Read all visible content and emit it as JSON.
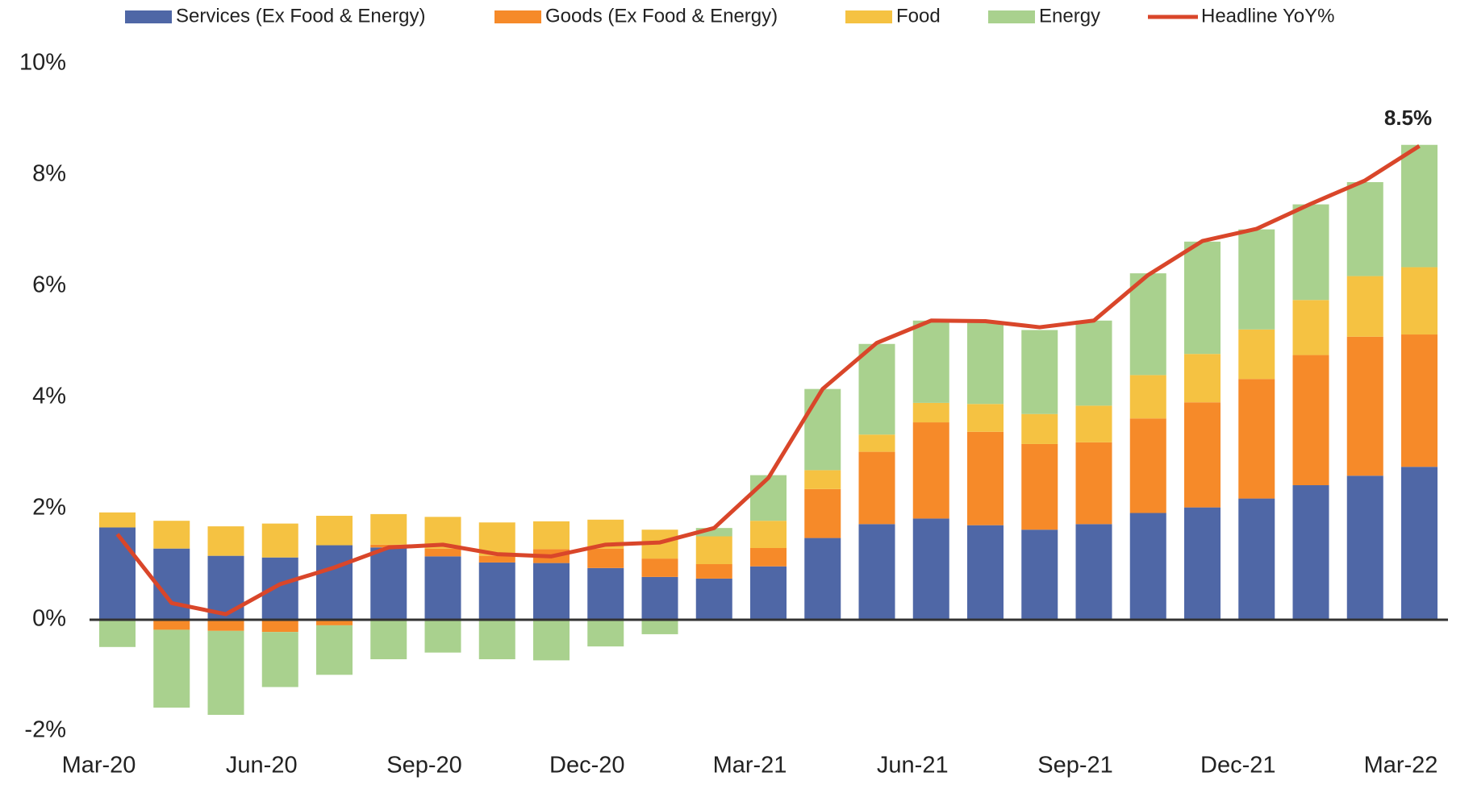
{
  "chart_data": {
    "type": "stacked_bar_line",
    "categories": [
      "Mar-20",
      null,
      null,
      "Jun-20",
      null,
      null,
      "Sep-20",
      null,
      null,
      "Dec-20",
      null,
      null,
      "Mar-21",
      null,
      null,
      "Jun-21",
      null,
      null,
      "Sep-21",
      null,
      null,
      "Dec-21",
      null,
      null,
      "Mar-22"
    ],
    "series": [
      {
        "name": "Services (Ex Food & Energy)",
        "color": "#4f67a6",
        "kind": "bar",
        "values": [
          1.66,
          1.28,
          1.15,
          1.12,
          1.34,
          1.3,
          1.14,
          1.03,
          1.02,
          0.93,
          0.77,
          0.74,
          0.96,
          1.47,
          1.72,
          1.82,
          1.7,
          1.62,
          1.72,
          1.92,
          2.02,
          2.18,
          2.42,
          2.59,
          2.75
        ]
      },
      {
        "name": "Goods (Ex Food & Energy)",
        "color": "#f68a29",
        "kind": "bar",
        "values": [
          0,
          -0.18,
          -0.2,
          -0.22,
          -0.1,
          0.05,
          0.14,
          0.12,
          0.25,
          0.35,
          0.33,
          0.26,
          0.33,
          0.88,
          1.3,
          1.73,
          1.68,
          1.54,
          1.47,
          1.7,
          1.89,
          2.15,
          2.34,
          2.5,
          2.38
        ]
      },
      {
        "name": "Food",
        "color": "#f5c242",
        "kind": "bar",
        "values": [
          0.27,
          0.5,
          0.53,
          0.61,
          0.53,
          0.55,
          0.57,
          0.6,
          0.5,
          0.52,
          0.52,
          0.5,
          0.49,
          0.34,
          0.31,
          0.35,
          0.5,
          0.54,
          0.66,
          0.78,
          0.87,
          0.89,
          0.99,
          1.09,
          1.21
        ]
      },
      {
        "name": "Energy",
        "color": "#a9d18e",
        "kind": "bar",
        "values": [
          -0.49,
          -1.4,
          -1.51,
          -0.99,
          -0.89,
          -0.71,
          -0.59,
          -0.71,
          -0.73,
          -0.48,
          -0.26,
          0.15,
          0.82,
          1.46,
          1.63,
          1.48,
          1.46,
          1.51,
          1.53,
          1.83,
          2.02,
          1.8,
          1.72,
          1.69,
          2.2
        ]
      },
      {
        "name": "Headline YoY%",
        "color": "#d9462a",
        "kind": "line",
        "values": [
          1.54,
          0.3,
          0.1,
          0.64,
          0.94,
          1.3,
          1.35,
          1.18,
          1.14,
          1.35,
          1.39,
          1.65,
          2.55,
          4.15,
          4.98,
          5.38,
          5.37,
          5.26,
          5.38,
          6.2,
          6.81,
          7.03,
          7.48,
          7.9,
          8.52
        ],
        "value_labels": [
          null,
          null,
          null,
          null,
          null,
          null,
          null,
          null,
          null,
          null,
          null,
          null,
          null,
          null,
          null,
          null,
          null,
          null,
          null,
          null,
          null,
          null,
          null,
          null,
          "8.5%"
        ]
      }
    ],
    "ylim": [
      -2,
      10
    ],
    "yticks": [
      {
        "value": -2,
        "label": "-2%"
      },
      {
        "value": 0,
        "label": "0%"
      },
      {
        "value": 2,
        "label": "2%"
      },
      {
        "value": 4,
        "label": "4%"
      },
      {
        "value": 6,
        "label": "6%"
      },
      {
        "value": 8,
        "label": "8%"
      },
      {
        "value": 10,
        "label": "10%"
      }
    ],
    "grid": false,
    "legend": "top"
  }
}
